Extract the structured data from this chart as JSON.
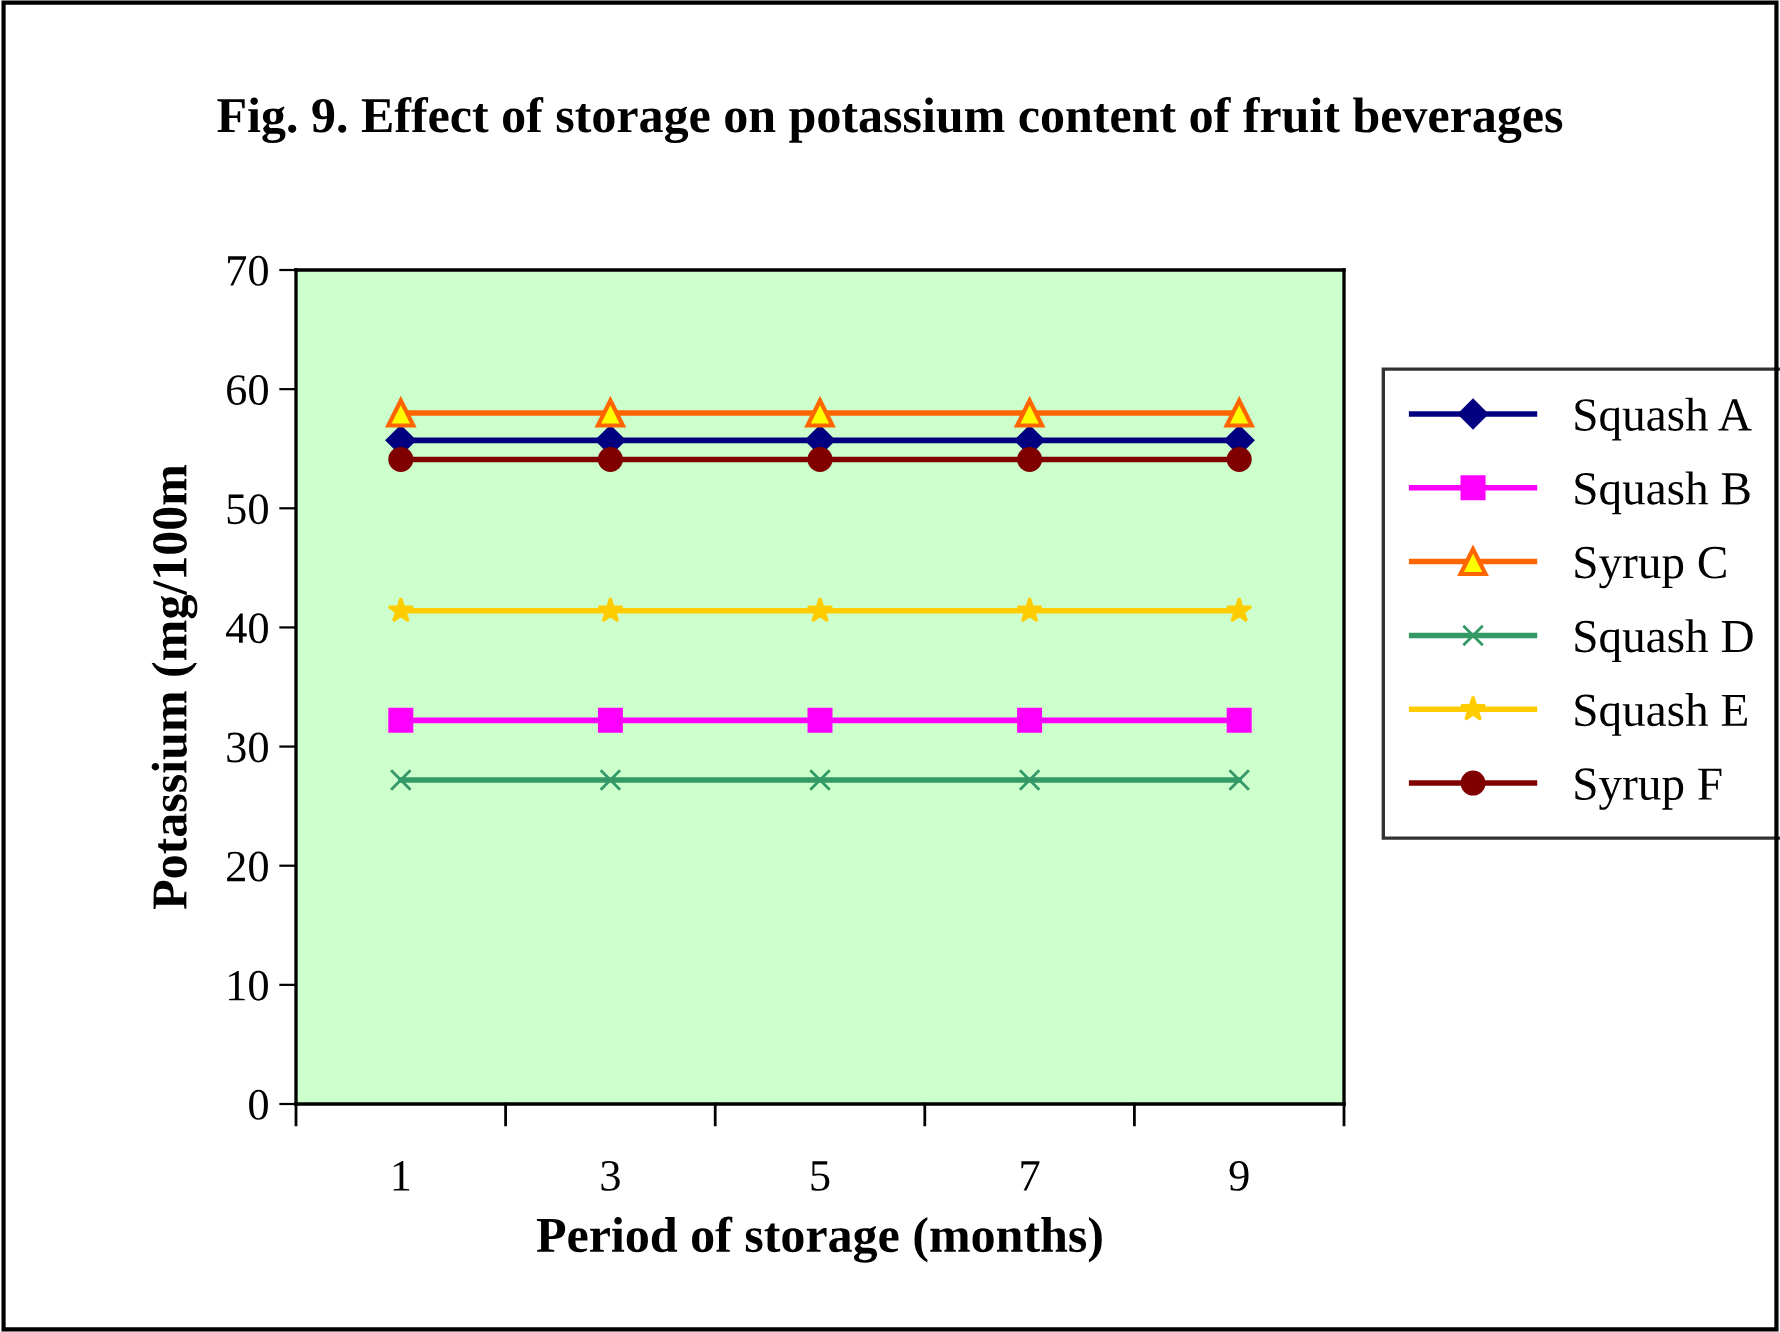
{
  "chart_data": {
    "type": "line",
    "title": "Fig. 9. Effect of storage on potassium content of fruit beverages",
    "xlabel": "Period of storage (months)",
    "ylabel": "Potassium (mg/100m",
    "categories": [
      "1",
      "3",
      "5",
      "7",
      "9"
    ],
    "ylim": [
      0,
      70
    ],
    "yticks": [
      0,
      10,
      20,
      30,
      40,
      50,
      60,
      70
    ],
    "grid": false,
    "legend": "right",
    "series": [
      {
        "name": "Squash A",
        "color": "#000080",
        "marker": "diamond",
        "values": [
          55.7,
          55.7,
          55.7,
          55.7,
          55.7
        ]
      },
      {
        "name": "Squash B",
        "color": "#ff00ff",
        "marker": "square",
        "values": [
          32.2,
          32.2,
          32.2,
          32.2,
          32.2
        ]
      },
      {
        "name": "Syrup C",
        "color": "#ff6600",
        "marker": "triangle",
        "values": [
          58,
          58,
          58,
          58,
          58
        ]
      },
      {
        "name": "Squash D",
        "color": "#339966",
        "marker": "cross",
        "values": [
          27.2,
          27.2,
          27.2,
          27.2,
          27.2
        ]
      },
      {
        "name": "Squash E",
        "color": "#ffcc00",
        "marker": "star",
        "values": [
          41.4,
          41.4,
          41.4,
          41.4,
          41.4
        ]
      },
      {
        "name": "Syrup F",
        "color": "#800000",
        "marker": "circle",
        "values": [
          54.1,
          54.1,
          54.1,
          54.1,
          54.1
        ]
      }
    ]
  }
}
